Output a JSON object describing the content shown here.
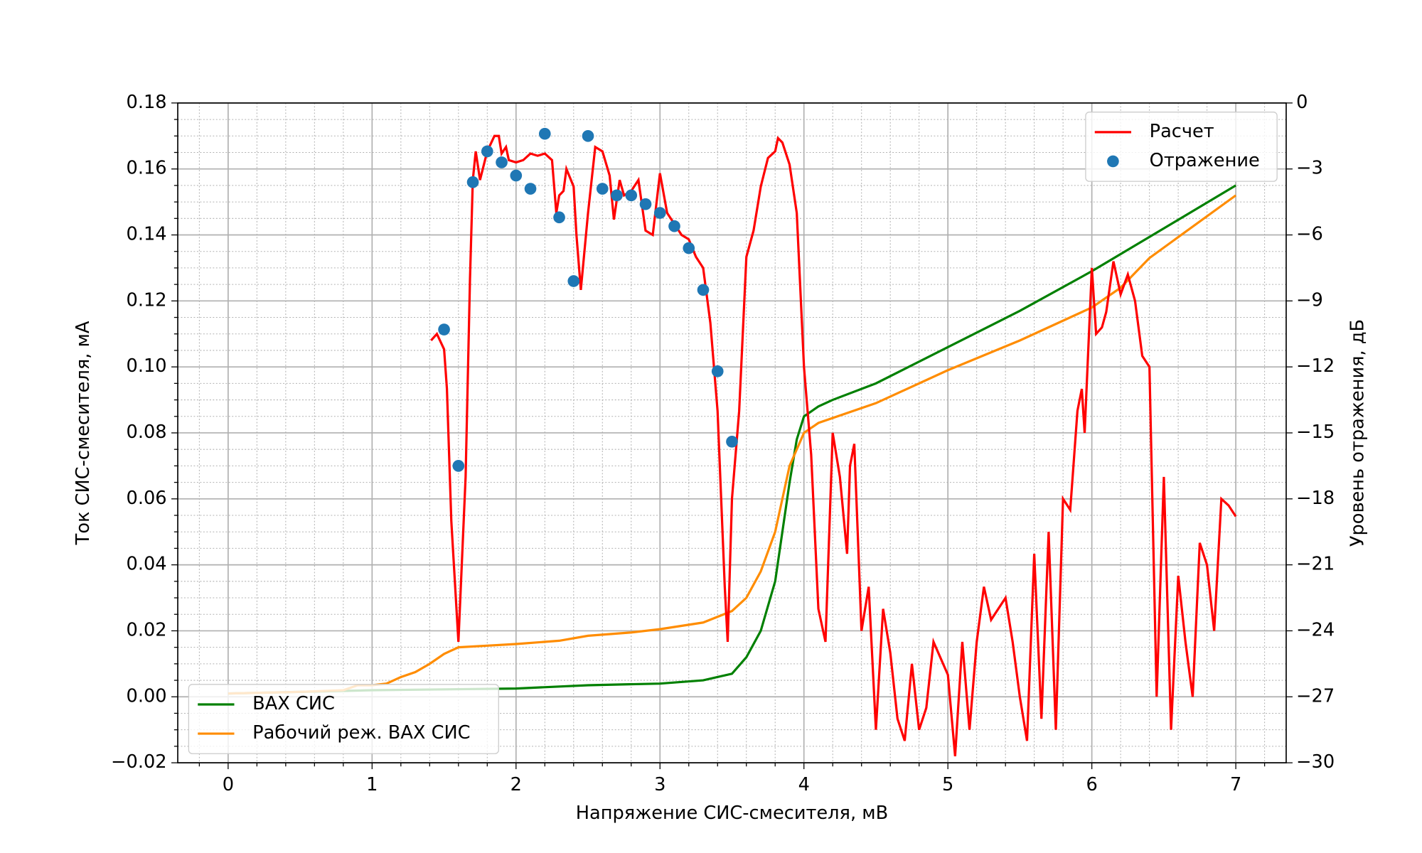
{
  "chart_data": {
    "type": "line",
    "xlabel": "Напряжение СИС-смесителя, мВ",
    "ylabel": "Ток СИС-смесителя, мА",
    "ylabel_color": "#8b0000",
    "y2label": "Уровень отражения, дБ",
    "xlim": [
      -0.35,
      7.35
    ],
    "ylim": [
      -0.02,
      0.18
    ],
    "y2lim": [
      -30,
      0
    ],
    "xticks": [
      0,
      1,
      2,
      3,
      4,
      5,
      6,
      7
    ],
    "yticks": [
      {
        "value": -0.02,
        "label": "−0.02"
      },
      {
        "value": 0,
        "label": "0.00"
      },
      {
        "value": 0.02,
        "label": "0.02"
      },
      {
        "value": 0.04,
        "label": "0.04"
      },
      {
        "value": 0.06,
        "label": "0.06"
      },
      {
        "value": 0.08,
        "label": "0.08"
      },
      {
        "value": 0.1,
        "label": "0.10"
      },
      {
        "value": 0.12,
        "label": "0.12"
      },
      {
        "value": 0.14,
        "label": "0.14"
      },
      {
        "value": 0.16,
        "label": "0.16"
      },
      {
        "value": 0.18,
        "label": "0.18"
      }
    ],
    "y2ticks": [
      {
        "value": -30,
        "label": "−30"
      },
      {
        "value": -27,
        "label": "−27"
      },
      {
        "value": -24,
        "label": "−24"
      },
      {
        "value": -21,
        "label": "−21"
      },
      {
        "value": -18,
        "label": "−18"
      },
      {
        "value": -15,
        "label": "−15"
      },
      {
        "value": -12,
        "label": "−12"
      },
      {
        "value": -9,
        "label": "−9"
      },
      {
        "value": -6,
        "label": "−6"
      },
      {
        "value": -3,
        "label": "−3"
      },
      0
    ],
    "x_minor_ticks": [
      -0.2,
      0.2,
      0.4,
      0.6,
      0.8,
      1.2,
      1.4,
      1.6,
      1.8,
      2.2,
      2.4,
      2.6,
      2.8,
      3.2,
      3.4,
      3.6,
      3.8,
      4.2,
      4.4,
      4.6,
      4.8,
      5.2,
      5.4,
      5.6,
      5.8,
      6.2,
      6.4,
      6.6,
      6.8,
      7.2
    ],
    "y_minor_ticks": [
      -0.015,
      -0.01,
      -0.005,
      0.005,
      0.01,
      0.015,
      0.025,
      0.03,
      0.035,
      0.045,
      0.05,
      0.055,
      0.065,
      0.07,
      0.075,
      0.085,
      0.09,
      0.095,
      0.105,
      0.11,
      0.115,
      0.125,
      0.13,
      0.135,
      0.145,
      0.15,
      0.155,
      0.165,
      0.17,
      0.175
    ],
    "grid": true,
    "minor_grid": true,
    "legend": "lower left",
    "legend_y2": "upper right",
    "series": [
      {
        "name": "ВАХ СИС",
        "color": "#008000",
        "type": "line",
        "x": [
          0,
          1,
          2,
          2.5,
          3,
          3.3,
          3.5,
          3.6,
          3.7,
          3.8,
          3.85,
          3.9,
          3.95,
          4.0,
          4.1,
          4.2,
          4.5,
          5,
          5.5,
          6,
          6.5,
          7
        ],
        "values": [
          0.001,
          0.002,
          0.0025,
          0.0035,
          0.004,
          0.005,
          0.007,
          0.012,
          0.02,
          0.035,
          0.05,
          0.065,
          0.078,
          0.085,
          0.088,
          0.09,
          0.095,
          0.106,
          0.117,
          0.129,
          0.142,
          0.155
        ]
      },
      {
        "name": "Рабочий реж. ВАХ СИС",
        "color": "#ff8c00",
        "type": "line",
        "x": [
          0,
          0.5,
          0.8,
          0.9,
          1.0,
          1.1,
          1.2,
          1.3,
          1.4,
          1.5,
          1.6,
          1.8,
          2.0,
          2.3,
          2.5,
          2.8,
          3.0,
          3.3,
          3.5,
          3.6,
          3.7,
          3.8,
          3.85,
          3.9,
          4.0,
          4.1,
          4.5,
          5,
          5.5,
          6,
          6.2,
          6.4,
          7
        ],
        "values": [
          0.001,
          0.0015,
          0.002,
          0.0035,
          0.0035,
          0.004,
          0.006,
          0.0075,
          0.01,
          0.013,
          0.015,
          0.0155,
          0.016,
          0.017,
          0.0185,
          0.0195,
          0.0205,
          0.0225,
          0.026,
          0.03,
          0.038,
          0.05,
          0.06,
          0.07,
          0.08,
          0.083,
          0.089,
          0.099,
          0.108,
          0.118,
          0.124,
          0.133,
          0.152
        ]
      },
      {
        "name": "Расчет",
        "color": "#ff0000",
        "type": "line",
        "axis": "y2",
        "x": [
          1.41,
          1.45,
          1.5,
          1.52,
          1.55,
          1.6,
          1.65,
          1.68,
          1.7,
          1.72,
          1.75,
          1.8,
          1.85,
          1.88,
          1.9,
          1.93,
          1.95,
          2.0,
          2.05,
          2.1,
          2.15,
          2.2,
          2.25,
          2.28,
          2.3,
          2.33,
          2.35,
          2.4,
          2.42,
          2.45,
          2.5,
          2.55,
          2.6,
          2.65,
          2.68,
          2.72,
          2.75,
          2.8,
          2.85,
          2.9,
          2.95,
          3.0,
          3.05,
          3.1,
          3.15,
          3.2,
          3.25,
          3.3,
          3.35,
          3.4,
          3.45,
          3.47,
          3.5,
          3.55,
          3.6,
          3.65,
          3.7,
          3.75,
          3.8,
          3.82,
          3.85,
          3.9,
          3.95,
          4.0,
          4.05,
          4.1,
          4.15,
          4.2,
          4.25,
          4.3,
          4.32,
          4.35,
          4.4,
          4.45,
          4.5,
          4.55,
          4.6,
          4.65,
          4.7,
          4.75,
          4.8,
          4.85,
          4.9,
          5.0,
          5.05,
          5.1,
          5.15,
          5.2,
          5.25,
          5.3,
          5.4,
          5.45,
          5.5,
          5.55,
          5.6,
          5.65,
          5.7,
          5.75,
          5.8,
          5.85,
          5.9,
          5.93,
          5.95,
          6.0,
          6.03,
          6.07,
          6.1,
          6.15,
          6.2,
          6.25,
          6.3,
          6.35,
          6.4,
          6.45,
          6.5,
          6.55,
          6.6,
          6.65,
          6.7,
          6.75,
          6.8,
          6.85,
          6.9,
          6.95,
          7.0
        ],
        "values": [
          -10.8,
          -10.5,
          -11.2,
          -13,
          -19,
          -24.5,
          -17,
          -8,
          -3.5,
          -2.2,
          -3.5,
          -2.2,
          -1.5,
          -1.5,
          -2.3,
          -2,
          -2.6,
          -2.7,
          -2.6,
          -2.3,
          -2.4,
          -2.3,
          -2.6,
          -5,
          -4.2,
          -4,
          -3,
          -3.8,
          -6,
          -8.5,
          -5,
          -2,
          -2.2,
          -3.3,
          -5.3,
          -3.5,
          -4.2,
          -4,
          -3.5,
          -5.8,
          -6,
          -3.2,
          -5,
          -5.5,
          -6,
          -6.2,
          -7,
          -7.5,
          -10,
          -14,
          -22,
          -24.5,
          -18,
          -14,
          -7,
          -5.8,
          -3.8,
          -2.5,
          -2.2,
          -1.6,
          -1.8,
          -2.8,
          -5,
          -12,
          -16,
          -23,
          -24.5,
          -15,
          -17,
          -20.5,
          -16.5,
          -15.5,
          -24,
          -22,
          -28.5,
          -23,
          -25,
          -28,
          -29,
          -25.5,
          -28.5,
          -27.5,
          -24.5,
          -26,
          -29.7,
          -24.5,
          -28.5,
          -24.5,
          -22,
          -23.5,
          -22.5,
          -24.5,
          -27,
          -29,
          -20.5,
          -28,
          -19.5,
          -28.5,
          -18,
          -18.5,
          -14,
          -13,
          -15,
          -7.5,
          -10.5,
          -10.2,
          -9.5,
          -7.2,
          -8.7,
          -7.8,
          -9,
          -11.5,
          -12,
          -27,
          -17,
          -28.5,
          -21.5,
          -24.5,
          -27,
          -20,
          -21,
          -24,
          -18,
          -18.3,
          -18.8
        ]
      },
      {
        "name": "Отражение",
        "color": "#1f77b4",
        "type": "scatter",
        "axis": "y2",
        "x": [
          1.5,
          1.6,
          1.7,
          1.8,
          1.9,
          2.0,
          2.1,
          2.2,
          2.3,
          2.4,
          2.5,
          2.6,
          2.7,
          2.8,
          2.9,
          3.0,
          3.1,
          3.2,
          3.3,
          3.4,
          3.5
        ],
        "values": [
          -10.3,
          -16.5,
          -3.6,
          -2.2,
          -2.7,
          -3.3,
          -3.9,
          -1.4,
          -5.2,
          -8.1,
          -1.5,
          -3.9,
          -4.2,
          -4.2,
          -4.6,
          -5.0,
          -5.6,
          -6.6,
          -8.5,
          -12.2,
          -15.4
        ]
      }
    ]
  }
}
